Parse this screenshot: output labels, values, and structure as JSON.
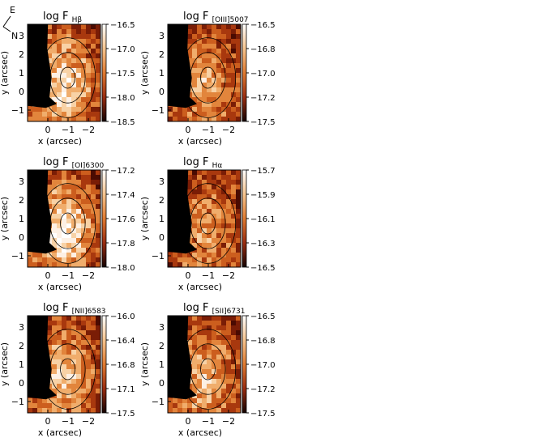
{
  "compass": {
    "east": "E",
    "north": "N"
  },
  "chart_data": [
    {
      "type": "heatmap",
      "title": "log F",
      "sub": "Hβ",
      "xlabel": "x (arcsec)",
      "ylabel": "y (arcsec)",
      "xticks": [
        "0",
        "−1",
        "−2"
      ],
      "yticks": [
        "3",
        "2",
        "1",
        "0",
        "−1"
      ],
      "colorbar": {
        "ticks": [
          "−16.5",
          "−17.0",
          "−17.5",
          "−18.0",
          "−18.5"
        ],
        "range": [
          -18.5,
          -16.5
        ]
      }
    },
    {
      "type": "heatmap",
      "title": "log F",
      "sub": "[OIII]5007",
      "xlabel": "x (arcsec)",
      "ylabel": "y (arcsec)",
      "xticks": [
        "0",
        "−1",
        "−2"
      ],
      "yticks": [
        "3",
        "2",
        "1",
        "0",
        "−1"
      ],
      "colorbar": {
        "ticks": [
          "−16.5",
          "−16.8",
          "−17.0",
          "−17.2",
          "−17.5"
        ],
        "range": [
          -17.5,
          -16.5
        ]
      }
    },
    {
      "type": "heatmap",
      "title": "log F",
      "sub": "[OI]6300",
      "xlabel": "x (arcsec)",
      "ylabel": "y (arcsec)",
      "xticks": [
        "0",
        "−1",
        "−2"
      ],
      "yticks": [
        "3",
        "2",
        "1",
        "0",
        "−1"
      ],
      "colorbar": {
        "ticks": [
          "−17.2",
          "−17.4",
          "−17.6",
          "−17.8",
          "−18.0"
        ],
        "range": [
          -18.0,
          -17.2
        ]
      }
    },
    {
      "type": "heatmap",
      "title": "log F",
      "sub": "Hα",
      "xlabel": "x (arcsec)",
      "ylabel": "y (arcsec)",
      "xticks": [
        "0",
        "−1",
        "−2"
      ],
      "yticks": [
        "3",
        "2",
        "1",
        "0",
        "−1"
      ],
      "colorbar": {
        "ticks": [
          "−15.7",
          "−15.9",
          "−16.1",
          "−16.3",
          "−16.5"
        ],
        "range": [
          -16.5,
          -15.7
        ]
      }
    },
    {
      "type": "heatmap",
      "title": "log F",
      "sub": "[NII]6583",
      "xlabel": "x (arcsec)",
      "ylabel": "y (arcsec)",
      "xticks": [
        "0",
        "−1",
        "−2"
      ],
      "yticks": [
        "3",
        "2",
        "1",
        "0",
        "−1"
      ],
      "colorbar": {
        "ticks": [
          "−16.0",
          "−16.4",
          "−16.8",
          "−17.1",
          "−17.5"
        ],
        "range": [
          -17.5,
          -16.0
        ]
      }
    },
    {
      "type": "heatmap",
      "title": "log F",
      "sub": "[SII]6731",
      "xlabel": "x (arcsec)",
      "ylabel": "y (arcsec)",
      "xticks": [
        "0",
        "−1",
        "−2"
      ],
      "yticks": [
        "3",
        "2",
        "1",
        "0",
        "−1"
      ],
      "colorbar": {
        "ticks": [
          "−16.5",
          "−16.8",
          "−17.0",
          "−17.2",
          "−17.5"
        ],
        "range": [
          -17.5,
          -16.5
        ]
      }
    }
  ]
}
